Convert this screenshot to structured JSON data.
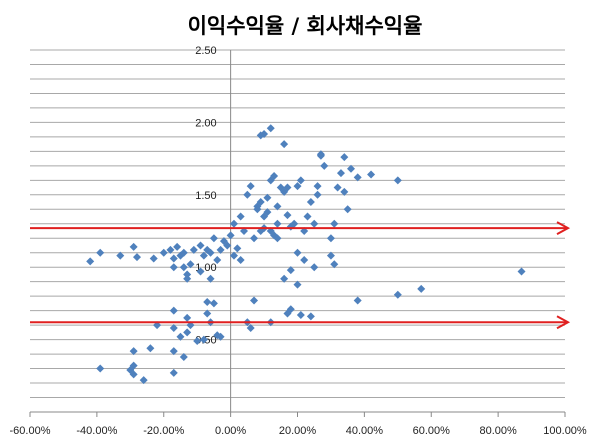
{
  "chart_data": {
    "type": "scatter",
    "title": "이익수익율 / 회사채수익율",
    "xlim": [
      -0.6,
      1.0
    ],
    "ylim": [
      0,
      2.5
    ],
    "x_ticks": [
      -0.6,
      -0.4,
      -0.2,
      0.0,
      0.2,
      0.4,
      0.6,
      0.8,
      1.0
    ],
    "x_tick_labels": [
      "-60.00%",
      "-40.00%",
      "-20.00%",
      "0.00%",
      "20.00%",
      "40.00%",
      "60.00%",
      "80.00%",
      "100.00%"
    ],
    "y_ticks": [
      0.5,
      1.0,
      1.5,
      2.0,
      2.5
    ],
    "y_tick_labels": [
      "0.50",
      "1.00",
      "1.50",
      "2.00",
      "2.50"
    ],
    "grid": true,
    "minor_grid_step": 0.1,
    "marker_color": "#4F81BD",
    "reference_line_color": "#E02020",
    "reference_lines": [
      1.27,
      0.62
    ],
    "points": [
      [
        -0.42,
        1.04
      ],
      [
        -0.39,
        1.1
      ],
      [
        -0.33,
        1.08
      ],
      [
        -0.29,
        1.14
      ],
      [
        -0.28,
        1.07
      ],
      [
        -0.23,
        1.06
      ],
      [
        -0.2,
        1.1
      ],
      [
        -0.18,
        1.12
      ],
      [
        -0.17,
        1.06
      ],
      [
        -0.16,
        1.14
      ],
      [
        -0.15,
        1.08
      ],
      [
        -0.14,
        1.1
      ],
      [
        -0.14,
        1.0
      ],
      [
        -0.13,
        0.95
      ],
      [
        -0.12,
        1.02
      ],
      [
        -0.13,
        0.92
      ],
      [
        -0.11,
        1.12
      ],
      [
        -0.09,
        1.15
      ],
      [
        -0.08,
        1.08
      ],
      [
        -0.07,
        1.12
      ],
      [
        -0.06,
        1.1
      ],
      [
        -0.05,
        1.2
      ],
      [
        -0.04,
        1.05
      ],
      [
        -0.03,
        1.12
      ],
      [
        -0.02,
        1.18
      ],
      [
        -0.01,
        1.15
      ],
      [
        0.0,
        1.22
      ],
      [
        0.01,
        1.08
      ],
      [
        0.02,
        1.13
      ],
      [
        0.03,
        1.05
      ],
      [
        0.04,
        1.25
      ],
      [
        -0.17,
        1.0
      ],
      [
        -0.09,
        0.97
      ],
      [
        -0.06,
        0.92
      ],
      [
        0.01,
        1.3
      ],
      [
        0.03,
        1.35
      ],
      [
        0.05,
        1.5
      ],
      [
        0.06,
        1.56
      ],
      [
        0.07,
        1.2
      ],
      [
        0.08,
        1.42
      ],
      [
        0.09,
        1.45
      ],
      [
        0.09,
        1.25
      ],
      [
        0.1,
        1.35
      ],
      [
        0.11,
        1.38
      ],
      [
        0.11,
        1.48
      ],
      [
        0.12,
        1.25
      ],
      [
        0.12,
        1.6
      ],
      [
        0.13,
        1.22
      ],
      [
        0.14,
        1.2
      ],
      [
        0.14,
        1.3
      ],
      [
        0.15,
        1.55
      ],
      [
        0.16,
        1.85
      ],
      [
        0.17,
        1.36
      ],
      [
        0.18,
        1.28
      ],
      [
        0.19,
        1.3
      ],
      [
        0.2,
        1.1
      ],
      [
        0.21,
        1.6
      ],
      [
        0.22,
        1.25
      ],
      [
        0.23,
        1.35
      ],
      [
        0.24,
        1.45
      ],
      [
        0.25,
        1.3
      ],
      [
        0.26,
        1.5
      ],
      [
        0.27,
        1.78
      ],
      [
        0.28,
        1.7
      ],
      [
        0.3,
        1.2
      ],
      [
        0.31,
        1.3
      ],
      [
        0.32,
        1.55
      ],
      [
        0.33,
        1.65
      ],
      [
        0.34,
        1.52
      ],
      [
        0.35,
        1.4
      ],
      [
        0.36,
        1.68
      ],
      [
        0.38,
        1.62
      ],
      [
        0.1,
        1.92
      ],
      [
        0.12,
        1.96
      ],
      [
        0.09,
        1.91
      ],
      [
        0.27,
        1.77
      ],
      [
        0.34,
        1.76
      ],
      [
        0.42,
        1.64
      ],
      [
        0.5,
        1.6
      ],
      [
        0.26,
        1.56
      ],
      [
        0.2,
        1.56
      ],
      [
        0.13,
        1.63
      ],
      [
        0.16,
        1.52
      ],
      [
        0.14,
        1.42
      ],
      [
        0.08,
        1.4
      ],
      [
        0.17,
        1.55
      ],
      [
        0.1,
        1.27
      ],
      [
        0.16,
        0.92
      ],
      [
        0.18,
        0.98
      ],
      [
        0.2,
        0.88
      ],
      [
        0.22,
        1.05
      ],
      [
        0.25,
        1.0
      ],
      [
        0.3,
        1.08
      ],
      [
        0.31,
        1.02
      ],
      [
        0.38,
        0.77
      ],
      [
        0.5,
        0.81
      ],
      [
        0.57,
        0.85
      ],
      [
        0.87,
        0.97
      ],
      [
        -0.17,
        0.7
      ],
      [
        -0.13,
        0.65
      ],
      [
        -0.12,
        0.6
      ],
      [
        -0.07,
        0.68
      ],
      [
        -0.07,
        0.76
      ],
      [
        -0.05,
        0.75
      ],
      [
        -0.22,
        0.6
      ],
      [
        -0.17,
        0.58
      ],
      [
        -0.15,
        0.52
      ],
      [
        -0.13,
        0.55
      ],
      [
        -0.1,
        0.49
      ],
      [
        -0.08,
        0.5
      ],
      [
        -0.06,
        0.62
      ],
      [
        -0.04,
        0.53
      ],
      [
        -0.03,
        0.52
      ],
      [
        -0.24,
        0.44
      ],
      [
        -0.29,
        0.42
      ],
      [
        -0.17,
        0.42
      ],
      [
        -0.14,
        0.38
      ],
      [
        -0.29,
        0.32
      ],
      [
        -0.3,
        0.29
      ],
      [
        -0.29,
        0.26
      ],
      [
        -0.26,
        0.22
      ],
      [
        -0.39,
        0.3
      ],
      [
        -0.17,
        0.27
      ],
      [
        0.05,
        0.62
      ],
      [
        0.06,
        0.58
      ],
      [
        0.12,
        0.62
      ],
      [
        0.17,
        0.68
      ],
      [
        0.18,
        0.71
      ],
      [
        0.21,
        0.67
      ],
      [
        0.24,
        0.66
      ],
      [
        0.07,
        0.77
      ]
    ]
  }
}
